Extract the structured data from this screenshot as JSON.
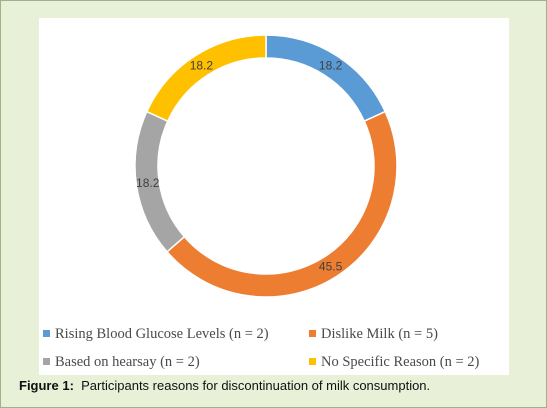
{
  "chart_data": {
    "type": "pie",
    "style": "donut",
    "categories": [
      "Rising Blood Glucose Levels (n = 2)",
      "Dislike Milk (n = 5)",
      "Based on hearsay (n = 2)",
      "No Specific Reason (n = 2)"
    ],
    "values": [
      18.2,
      45.5,
      18.2,
      18.2
    ],
    "data_labels": [
      "18.2",
      "45.5",
      "18.2",
      "18.2"
    ],
    "colors": [
      "#5b9bd5",
      "#ed7d31",
      "#a5a5a5",
      "#ffc000"
    ],
    "legend_position": "bottom"
  },
  "caption": {
    "prefix": "Figure 1:",
    "text": "Participants reasons for discontinuation of milk consumption."
  }
}
